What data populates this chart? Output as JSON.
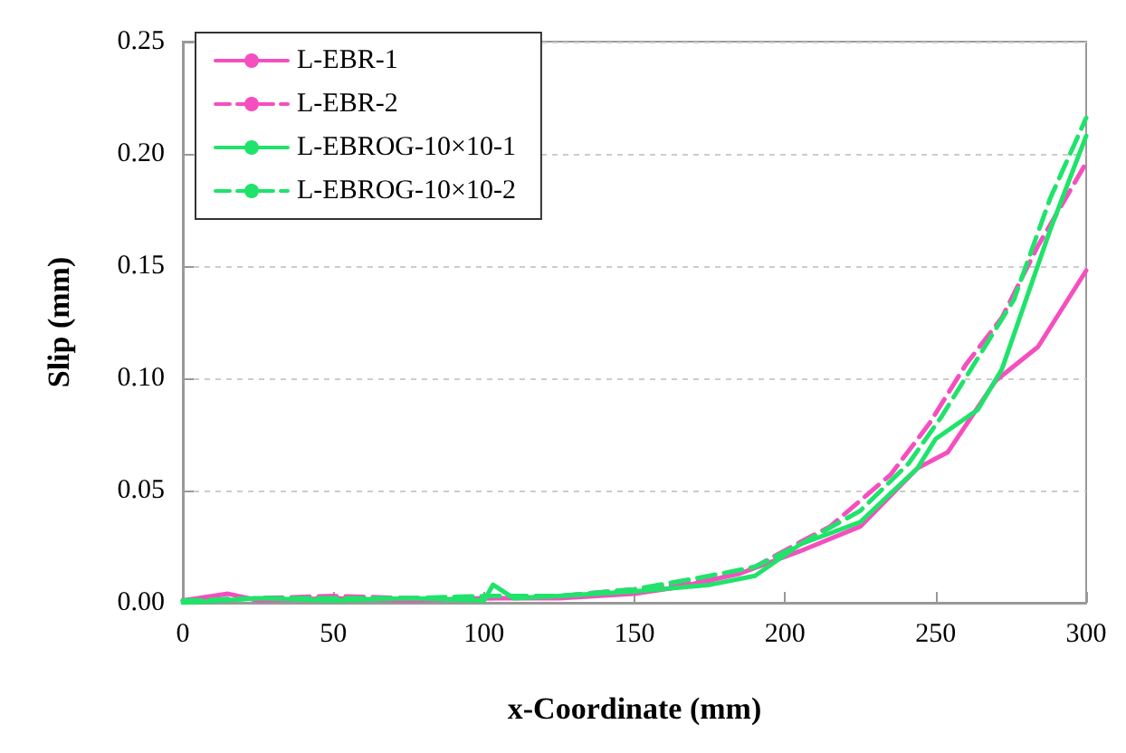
{
  "chart_data": {
    "type": "line",
    "xlabel": "x-Coordinate (mm)",
    "ylabel": "Slip (mm)",
    "xlim": [
      0,
      300
    ],
    "xticks": [
      0,
      50,
      100,
      150,
      200,
      250,
      300
    ],
    "ylim": [
      0,
      0.25
    ],
    "yticks": [
      {
        "value": 0,
        "label": "0.00"
      },
      {
        "value": 0.05,
        "label": "0.05"
      },
      {
        "value": 0.1,
        "label": "0.10"
      },
      {
        "value": 0.15,
        "label": "0.15"
      },
      {
        "value": 0.2,
        "label": "0.20"
      },
      {
        "value": 0.25,
        "label": "0.25"
      }
    ],
    "grid": "y",
    "legend": "top left",
    "marker": "none",
    "series": [
      {
        "name": "L-EBR-1",
        "color": "#f54fbf",
        "line_style": "solid",
        "x": [
          0,
          15,
          25,
          50,
          75,
          100,
          125,
          150,
          165,
          185,
          205,
          225,
          244,
          254,
          270,
          284,
          300
        ],
        "values": [
          0.001,
          0.004,
          0.001,
          0.002,
          0.001,
          0.002,
          0.002,
          0.004,
          0.007,
          0.013,
          0.023,
          0.034,
          0.06,
          0.067,
          0.099,
          0.114,
          0.148
        ]
      },
      {
        "name": "L-EBR-2",
        "color": "#f54fbf",
        "line_style": "dashed",
        "x": [
          0,
          25,
          50,
          75,
          100,
          125,
          150,
          175,
          190,
          205,
          215,
          235,
          248,
          260,
          272,
          284,
          300
        ],
        "values": [
          0.001,
          0.002,
          0.003,
          0.002,
          0.002,
          0.003,
          0.006,
          0.01,
          0.016,
          0.027,
          0.034,
          0.057,
          0.08,
          0.106,
          0.127,
          0.159,
          0.196
        ]
      },
      {
        "name": "L-EBROG-10×10-1",
        "color": "#1fe36a",
        "line_style": "solid",
        "x": [
          0,
          25,
          50,
          75,
          100,
          103,
          110,
          125,
          150,
          175,
          190,
          205,
          225,
          244,
          250,
          264,
          272,
          280,
          288,
          300
        ],
        "values": [
          0.0,
          0.002,
          0.001,
          0.002,
          0.001,
          0.008,
          0.002,
          0.003,
          0.005,
          0.008,
          0.012,
          0.026,
          0.036,
          0.06,
          0.073,
          0.086,
          0.104,
          0.135,
          0.166,
          0.208
        ]
      },
      {
        "name": "L-EBROG-10×10-2",
        "color": "#1fe36a",
        "line_style": "dashed",
        "x": [
          0,
          25,
          50,
          75,
          100,
          125,
          150,
          175,
          190,
          205,
          225,
          241,
          252,
          264,
          276,
          288,
          300
        ],
        "values": [
          0.001,
          0.002,
          0.002,
          0.002,
          0.003,
          0.003,
          0.006,
          0.012,
          0.016,
          0.026,
          0.041,
          0.062,
          0.083,
          0.109,
          0.135,
          0.18,
          0.216
        ]
      }
    ]
  }
}
